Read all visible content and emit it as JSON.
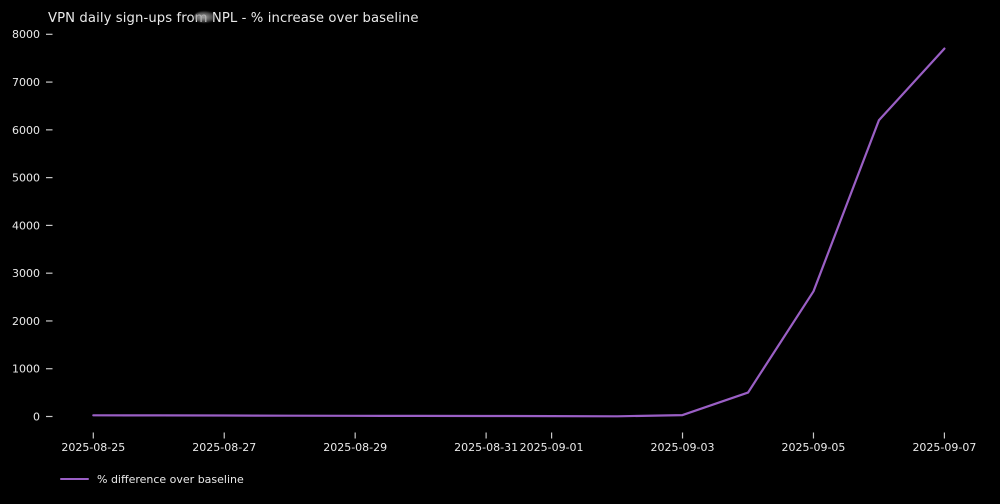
{
  "chart_data": {
    "type": "line",
    "title": "VPN daily sign-ups from NPL - % increase over baseline",
    "x": [
      "2025-08-25",
      "2025-08-26",
      "2025-08-27",
      "2025-08-28",
      "2025-08-29",
      "2025-08-30",
      "2025-08-31",
      "2025-09-01",
      "2025-09-02",
      "2025-09-03",
      "2025-09-04",
      "2025-09-05",
      "2025-09-06",
      "2025-09-07"
    ],
    "series": [
      {
        "name": "% difference over baseline",
        "values": [
          25,
          22,
          20,
          17,
          15,
          12,
          10,
          8,
          5,
          30,
          500,
          2620,
          6200,
          7700
        ]
      }
    ],
    "xticks": [
      "2025-08-25",
      "2025-08-27",
      "2025-08-29",
      "2025-08-31",
      "2025-09-01",
      "2025-09-03",
      "2025-09-05",
      "2025-09-07"
    ],
    "yticks": [
      0,
      1000,
      2000,
      3000,
      4000,
      5000,
      6000,
      7000,
      8000
    ],
    "ylim": [
      0,
      8000
    ],
    "xlabel": "",
    "ylabel": "",
    "grid": false,
    "legend_position": "lower-left",
    "colors": {
      "background": "#000000",
      "line": "#9a5fc5",
      "text": "#e9e9e9",
      "ticks": "#c9c9c9"
    }
  }
}
